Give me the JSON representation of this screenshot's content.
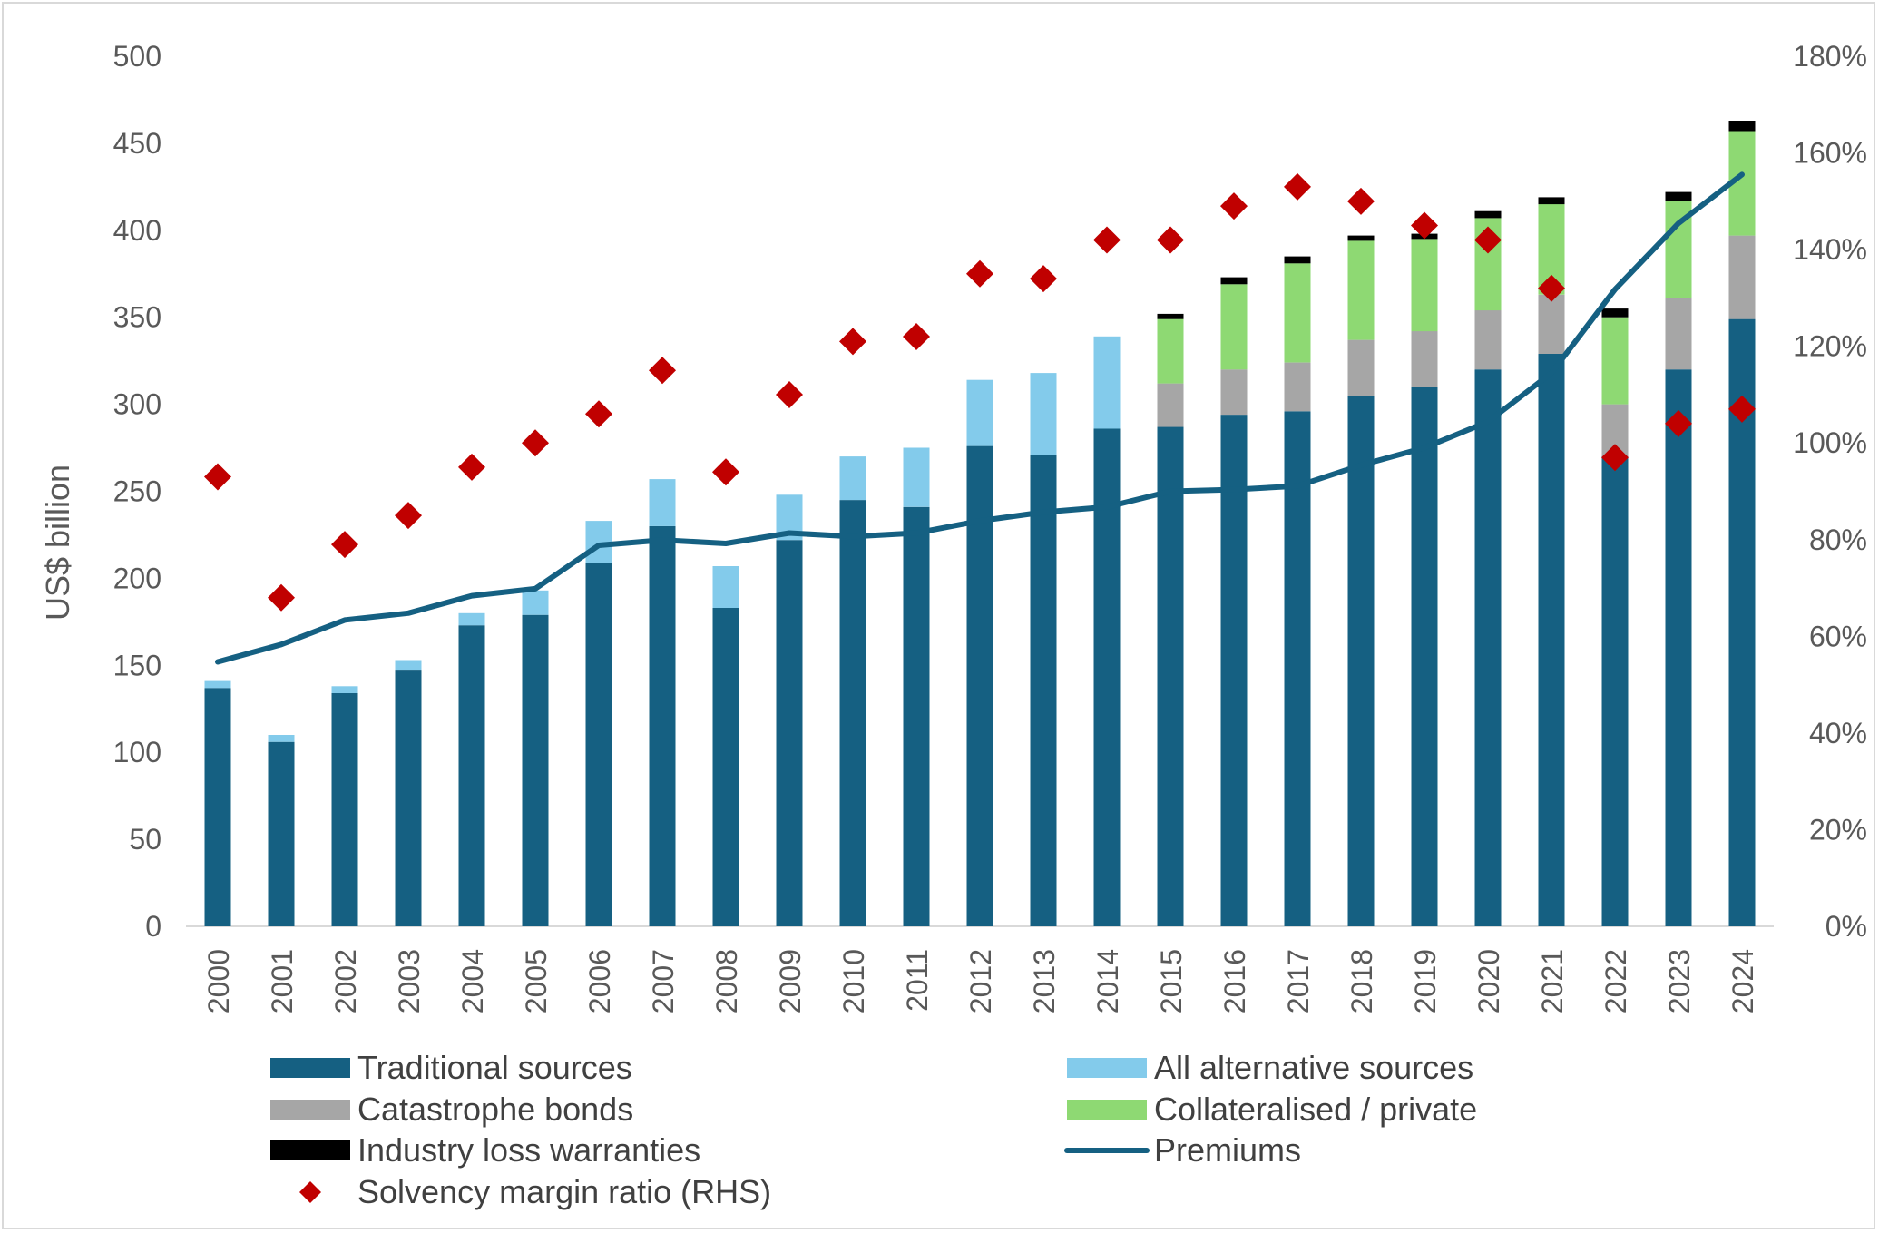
{
  "chart_data": {
    "type": "bar",
    "stacked": true,
    "title": "",
    "xlabel": "",
    "ylabel": "US$ billion",
    "ylim": [
      0,
      500
    ],
    "y_ticks": [
      "500",
      "450",
      "400",
      "350",
      "300",
      "250",
      "200",
      "150",
      "100",
      "50",
      "0"
    ],
    "y2lim": [
      0,
      180
    ],
    "y2_ticks": [
      "180%",
      "160%",
      "140%",
      "120%",
      "100%",
      "80%",
      "60%",
      "40%",
      "20%",
      "0%"
    ],
    "categories": [
      "2000",
      "2001",
      "2002",
      "2003",
      "2004",
      "2005",
      "2006",
      "2007",
      "2008",
      "2009",
      "2010",
      "2011",
      "2012",
      "2013",
      "2014",
      "2015",
      "2016",
      "2017",
      "2018",
      "2019",
      "2020",
      "2021",
      "2022",
      "2023",
      "2024"
    ],
    "series": [
      {
        "name": "Traditional sources",
        "kind": "bar",
        "color": "#156082",
        "values": [
          137,
          106,
          134,
          147,
          173,
          179,
          209,
          230,
          183,
          222,
          245,
          241,
          276,
          271,
          286,
          287,
          294,
          296,
          305,
          310,
          320,
          329,
          270,
          320,
          349
        ]
      },
      {
        "name": "All alternative sources",
        "kind": "bar",
        "color": "#83cbeb",
        "values": [
          4,
          4,
          4,
          6,
          7,
          14,
          24,
          27,
          24,
          26,
          25,
          34,
          38,
          47,
          53,
          0,
          0,
          0,
          0,
          0,
          0,
          0,
          0,
          0,
          0
        ]
      },
      {
        "name": "Catastrophe bonds",
        "kind": "bar",
        "color": "#a6a6a6",
        "values": [
          0,
          0,
          0,
          0,
          0,
          0,
          0,
          0,
          0,
          0,
          0,
          0,
          0,
          0,
          0,
          25,
          26,
          28,
          32,
          32,
          34,
          34,
          30,
          41,
          48
        ]
      },
      {
        "name": "Collateralised / private",
        "kind": "bar",
        "color": "#8ed973",
        "values": [
          0,
          0,
          0,
          0,
          0,
          0,
          0,
          0,
          0,
          0,
          0,
          0,
          0,
          0,
          0,
          37,
          49,
          57,
          57,
          53,
          53,
          52,
          50,
          56,
          60
        ]
      },
      {
        "name": "Industry loss warranties",
        "kind": "bar",
        "color": "#000000",
        "values": [
          0,
          0,
          0,
          0,
          0,
          0,
          0,
          0,
          0,
          0,
          0,
          0,
          0,
          0,
          0,
          3,
          4,
          4,
          3,
          3,
          4,
          4,
          5,
          5,
          6
        ]
      },
      {
        "name": "Premiums",
        "kind": "line",
        "color": "#156082",
        "axis": "left",
        "values": [
          152,
          162,
          176,
          180,
          190,
          194,
          219,
          222,
          220,
          226,
          224,
          226,
          233,
          238,
          241,
          250,
          251,
          253,
          265,
          275,
          290,
          318,
          366,
          404,
          432
        ]
      },
      {
        "name": "Solvency margin ratio (RHS)",
        "kind": "scatter",
        "marker": "diamond",
        "color": "#c00000",
        "axis": "right",
        "unit": "%",
        "values": [
          93,
          68,
          79,
          85,
          95,
          100,
          106,
          115,
          94,
          110,
          121,
          122,
          135,
          134,
          142,
          142,
          149,
          153,
          150,
          145,
          142,
          132,
          97,
          104,
          107
        ]
      }
    ],
    "legend": {
      "placement": "bottom",
      "entries": [
        "Traditional sources",
        "All alternative sources",
        "Catastrophe bonds",
        "Collateralised / private",
        "Industry loss warranties",
        "Premiums",
        "Solvency margin ratio (RHS)"
      ]
    }
  }
}
